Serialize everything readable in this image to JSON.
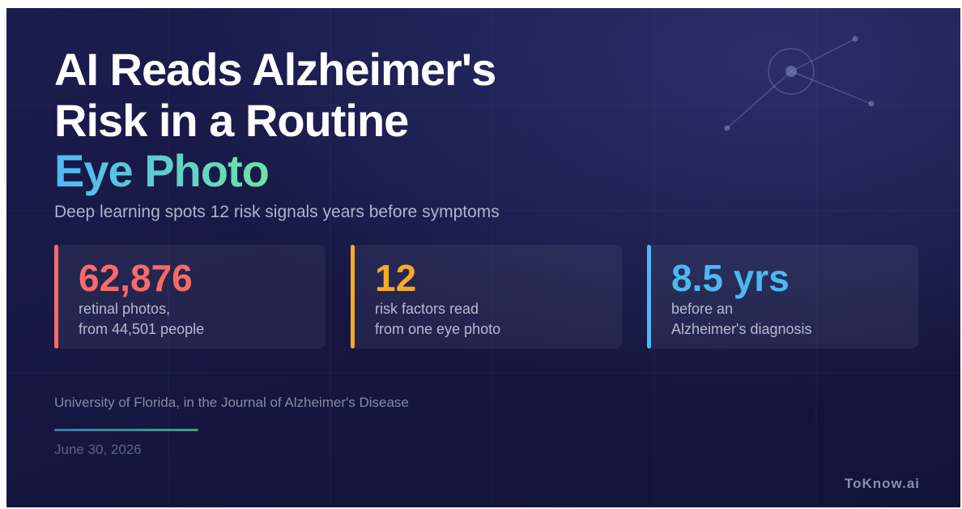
{
  "header": {
    "title_lines": [
      "AI Reads Alzheimer's",
      "Risk in a Routine"
    ],
    "highlight": "Eye Photo",
    "subtitle": "Deep learning spots 12 risk signals years before symptoms"
  },
  "stats": [
    {
      "value": "62,876",
      "lines": [
        "retinal photos,",
        "from 44,501 people"
      ]
    },
    {
      "value": "12",
      "lines": [
        "risk factors read",
        "from one eye photo"
      ]
    },
    {
      "value": "8.5 yrs",
      "lines": [
        "before an",
        "Alzheimer's diagnosis"
      ]
    }
  ],
  "footer": {
    "source": "University of Florida, in the Journal of Alzheimer's Disease",
    "date": "June 30, 2026",
    "brand": "ToKnow.ai"
  }
}
